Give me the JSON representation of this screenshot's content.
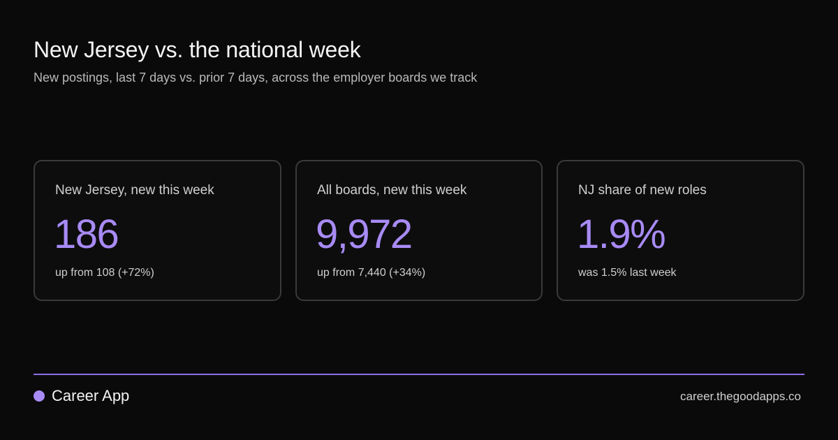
{
  "header": {
    "title": "New Jersey vs. the national week",
    "subtitle": "New postings, last 7 days vs. prior 7 days, across the employer boards we track"
  },
  "cards": [
    {
      "label": "New Jersey, new this week",
      "value": "186",
      "note": "up from 108 (+72%)"
    },
    {
      "label": "All boards, new this week",
      "value": "9,972",
      "note": "up from 7,440 (+34%)"
    },
    {
      "label": "NJ share of new roles",
      "value": "1.9%",
      "note": "was 1.5% last week"
    }
  ],
  "footer": {
    "brand_icon": "brand-dot-icon",
    "brand_name": "Career App",
    "site": "career.thegoodapps.co"
  },
  "colors": {
    "background": "#0a0a0a",
    "accent": "#a88bf5",
    "card_border": "#3a3a3d"
  }
}
